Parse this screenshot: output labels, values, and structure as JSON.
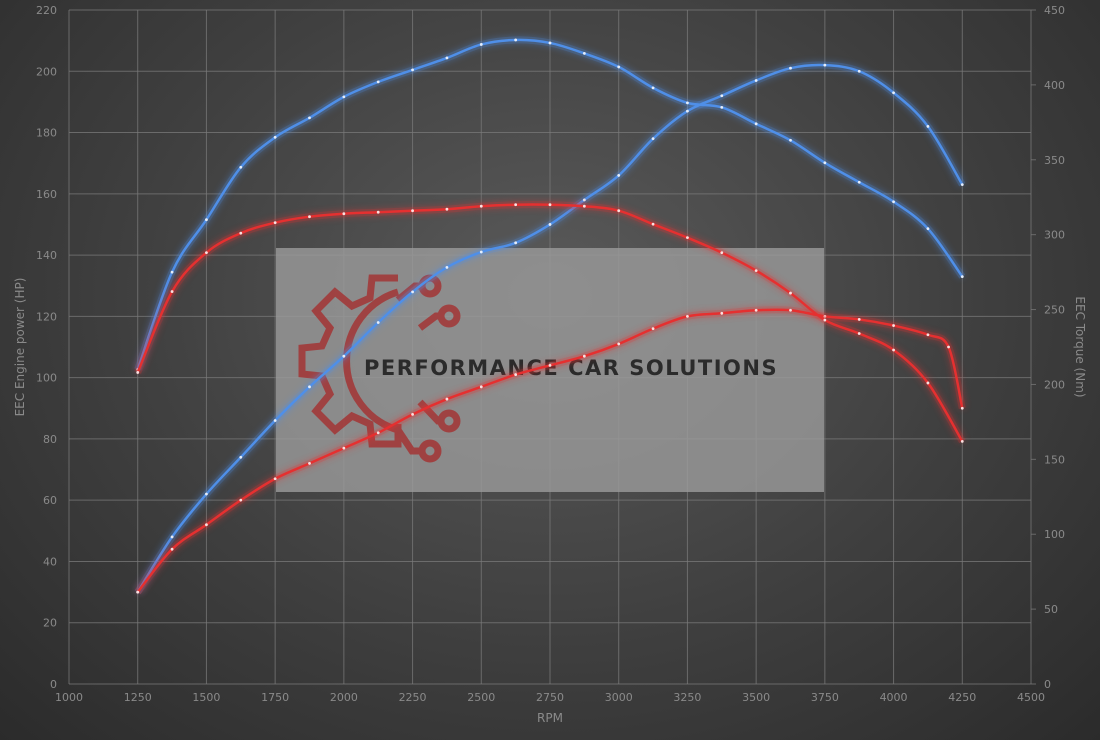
{
  "chart_data": {
    "type": "line",
    "xlabel": "RPM",
    "ylabel_left": "EEC Engine power (HP)",
    "ylabel_right": "EEC Torque (Nm)",
    "xlim": [
      1000,
      4500
    ],
    "ylim_left": [
      0,
      220
    ],
    "ylim_right": [
      0,
      450
    ],
    "x_ticks": [
      1000,
      1250,
      1500,
      1750,
      2000,
      2250,
      2500,
      2750,
      3000,
      3250,
      3500,
      3750,
      4000,
      4250,
      4500
    ],
    "y_ticks_left": [
      0,
      20,
      40,
      60,
      80,
      100,
      120,
      140,
      160,
      180,
      200,
      220
    ],
    "y_ticks_right": [
      0,
      50,
      100,
      150,
      200,
      250,
      300,
      350,
      400,
      450
    ],
    "grid": true,
    "watermark": "PERFORMANCE CAR SOLUTIONS",
    "series": [
      {
        "axis": "left",
        "color": "#4f8fe8",
        "points": [
          [
            1250,
            30
          ],
          [
            1375,
            48
          ],
          [
            1500,
            62
          ],
          [
            1625,
            74
          ],
          [
            1750,
            86
          ],
          [
            1875,
            97
          ],
          [
            2000,
            107
          ],
          [
            2125,
            118
          ],
          [
            2250,
            128
          ],
          [
            2375,
            136
          ],
          [
            2500,
            141
          ],
          [
            2625,
            144
          ],
          [
            2750,
            150
          ],
          [
            2875,
            158
          ],
          [
            3000,
            166
          ],
          [
            3125,
            178
          ],
          [
            3250,
            187
          ],
          [
            3375,
            192
          ],
          [
            3500,
            197
          ],
          [
            3625,
            201
          ],
          [
            3750,
            202
          ],
          [
            3875,
            200
          ],
          [
            4000,
            193
          ],
          [
            4125,
            182
          ],
          [
            4250,
            163
          ]
        ]
      },
      {
        "axis": "left",
        "color": "#e53030",
        "points": [
          [
            1250,
            30
          ],
          [
            1375,
            44
          ],
          [
            1500,
            52
          ],
          [
            1625,
            60
          ],
          [
            1750,
            67
          ],
          [
            1875,
            72
          ],
          [
            2000,
            77
          ],
          [
            2125,
            82
          ],
          [
            2250,
            88
          ],
          [
            2375,
            93
          ],
          [
            2500,
            97
          ],
          [
            2625,
            101
          ],
          [
            2750,
            104
          ],
          [
            2875,
            107
          ],
          [
            3000,
            111
          ],
          [
            3125,
            116
          ],
          [
            3250,
            120
          ],
          [
            3375,
            121
          ],
          [
            3500,
            122
          ],
          [
            3625,
            122
          ],
          [
            3750,
            120
          ],
          [
            3875,
            119
          ],
          [
            4000,
            117
          ],
          [
            4125,
            114
          ],
          [
            4200,
            110
          ],
          [
            4250,
            90
          ]
        ]
      },
      {
        "axis": "right",
        "color": "#4f8fe8",
        "points": [
          [
            1250,
            210
          ],
          [
            1375,
            275
          ],
          [
            1500,
            310
          ],
          [
            1625,
            345
          ],
          [
            1750,
            365
          ],
          [
            1875,
            378
          ],
          [
            2000,
            392
          ],
          [
            2125,
            402
          ],
          [
            2250,
            410
          ],
          [
            2375,
            418
          ],
          [
            2500,
            427
          ],
          [
            2625,
            430
          ],
          [
            2750,
            428
          ],
          [
            2875,
            421
          ],
          [
            3000,
            412
          ],
          [
            3125,
            398
          ],
          [
            3250,
            388
          ],
          [
            3375,
            385
          ],
          [
            3500,
            374
          ],
          [
            3625,
            363
          ],
          [
            3750,
            348
          ],
          [
            3875,
            335
          ],
          [
            4000,
            322
          ],
          [
            4125,
            304
          ],
          [
            4250,
            272
          ]
        ]
      },
      {
        "axis": "right",
        "color": "#e53030",
        "points": [
          [
            1250,
            208
          ],
          [
            1375,
            262
          ],
          [
            1500,
            288
          ],
          [
            1625,
            301
          ],
          [
            1750,
            308
          ],
          [
            1875,
            312
          ],
          [
            2000,
            314
          ],
          [
            2125,
            315
          ],
          [
            2250,
            316
          ],
          [
            2375,
            317
          ],
          [
            2500,
            319
          ],
          [
            2625,
            320
          ],
          [
            2750,
            320
          ],
          [
            2875,
            319
          ],
          [
            3000,
            316
          ],
          [
            3125,
            307
          ],
          [
            3250,
            298
          ],
          [
            3375,
            288
          ],
          [
            3500,
            276
          ],
          [
            3625,
            261
          ],
          [
            3750,
            243
          ],
          [
            3875,
            234
          ],
          [
            4000,
            223
          ],
          [
            4125,
            201
          ],
          [
            4250,
            162
          ]
        ]
      }
    ]
  }
}
